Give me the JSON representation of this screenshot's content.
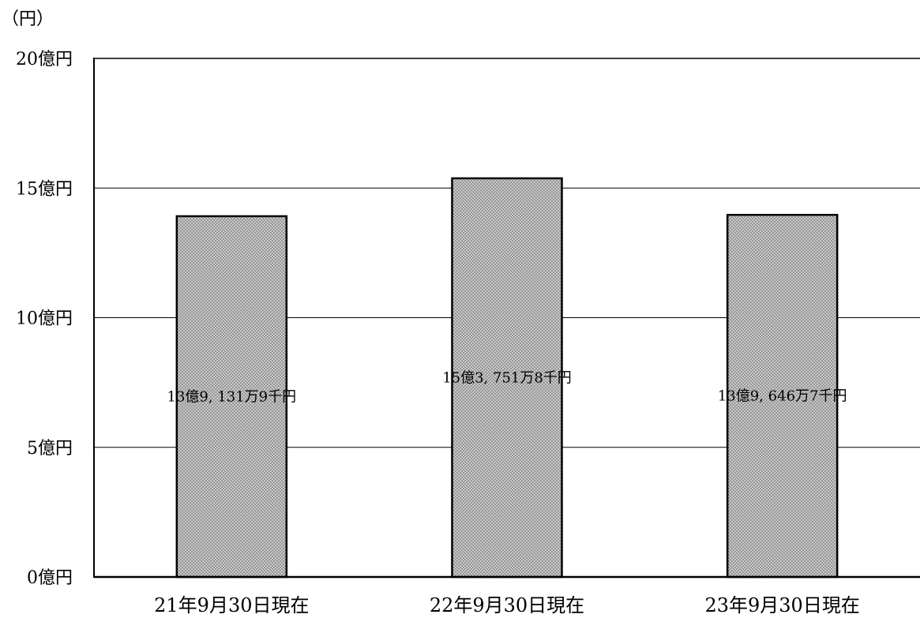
{
  "chart_data": {
    "type": "bar",
    "ylabel": "（円）",
    "categories": [
      "21年9月30日現在",
      "22年9月30日現在",
      "23年9月30日現在"
    ],
    "values": [
      1391319000,
      1537518000,
      1396467000
    ],
    "data_labels": [
      "13億9, 131万9千円",
      "15億3, 751万8千円",
      "13億9, 646万7千円"
    ],
    "ylim": [
      0,
      2000000000
    ],
    "yticks": [
      0,
      500000000,
      1000000000,
      1500000000,
      2000000000
    ],
    "ytick_labels": [
      "0億円",
      "5億円",
      "10億円",
      "15億円",
      "20億円"
    ],
    "grid": true,
    "legend": "none",
    "colors": {
      "bar_fill": "#c8c8c8",
      "bar_dot": "#6e6e6e",
      "bar_stroke": "#000000",
      "grid": "#000000"
    }
  }
}
